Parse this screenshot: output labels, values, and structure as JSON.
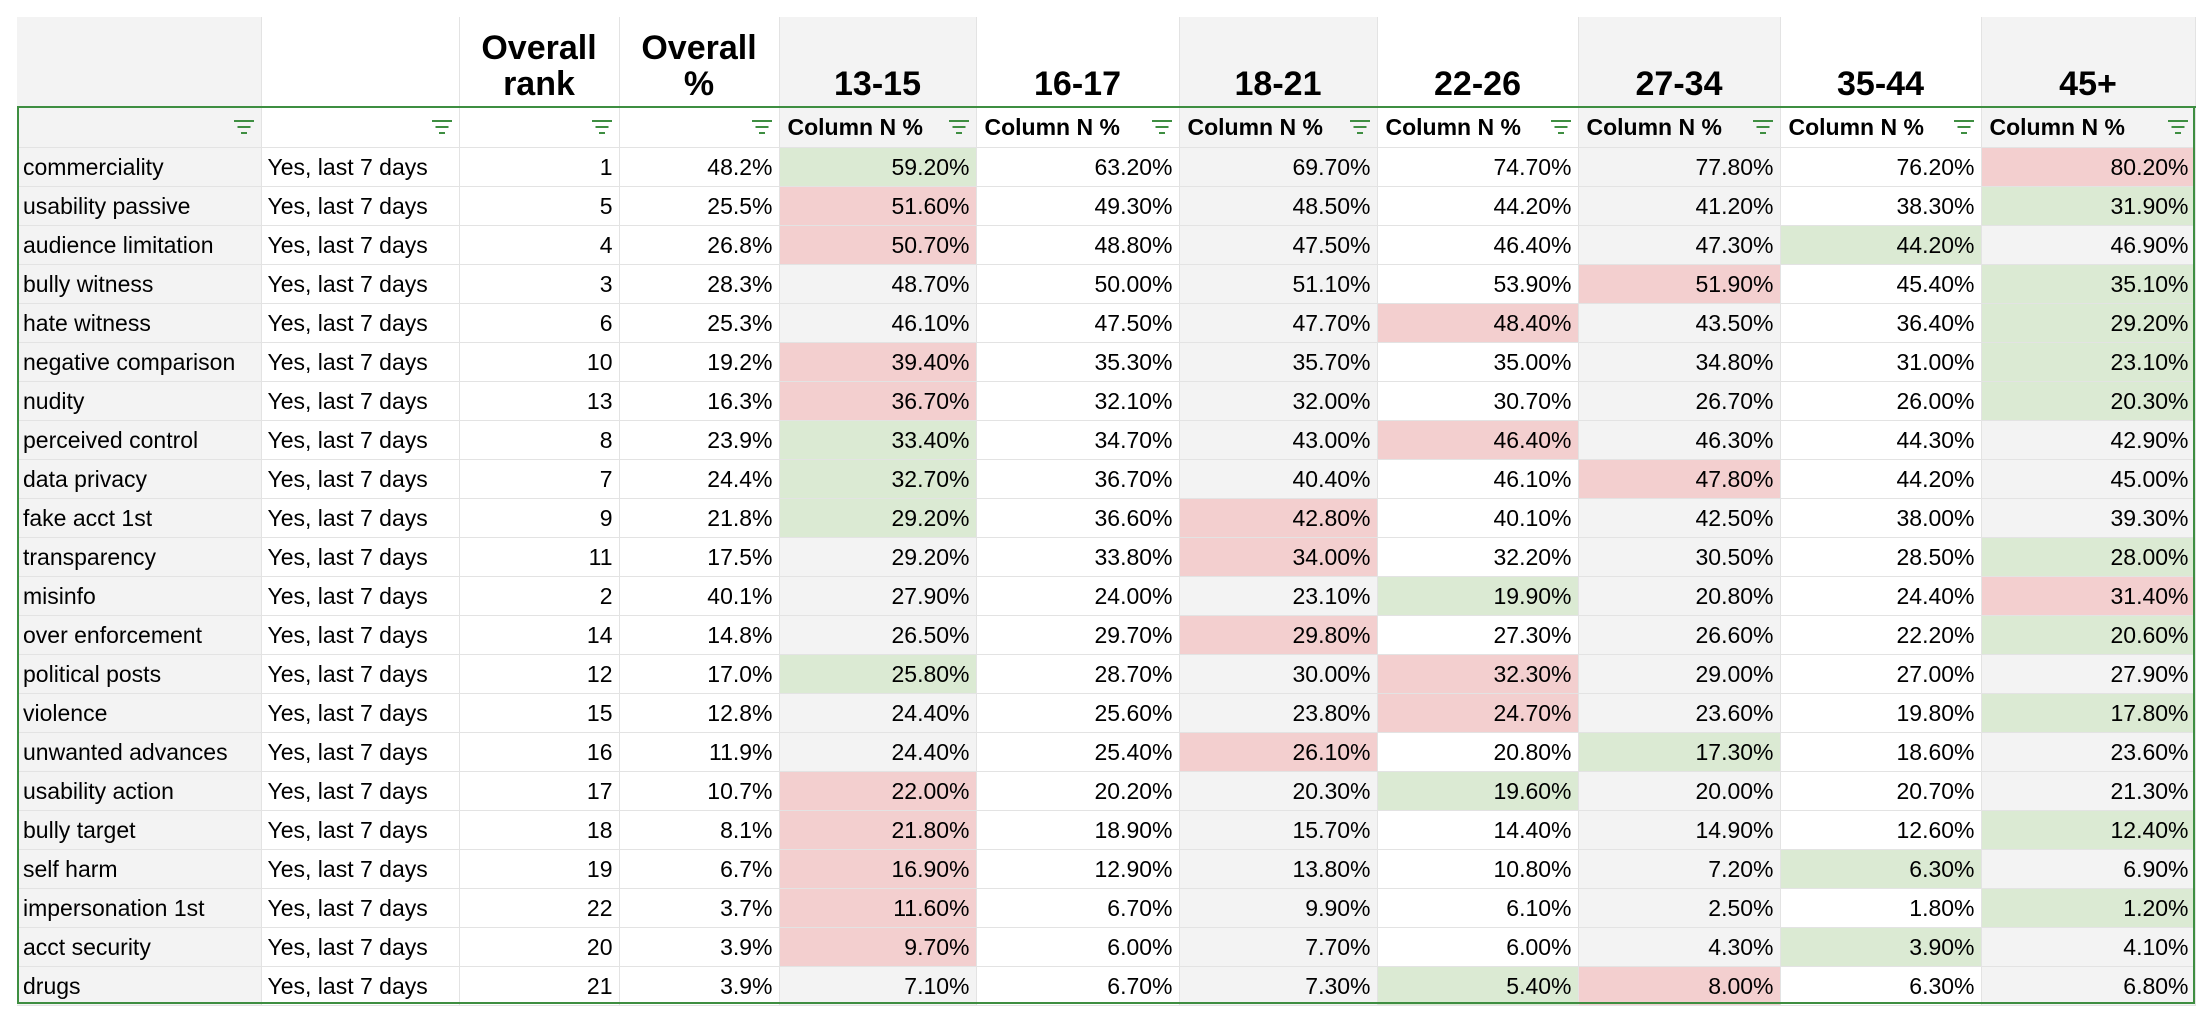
{
  "columns": {
    "headers": [
      "",
      "",
      "Overall\nrank",
      "Overall\n%",
      "13-15",
      "16-17",
      "18-21",
      "22-26",
      "27-34",
      "35-44",
      "45+"
    ],
    "subheader": [
      "",
      "",
      "",
      "",
      "Column N %",
      "Column N %",
      "Column N %",
      "Column N %",
      "Column N %",
      "Column N %",
      "Column N %"
    ],
    "shaded": [
      true,
      false,
      false,
      false,
      true,
      false,
      true,
      false,
      true,
      false,
      true
    ]
  },
  "icons": {
    "filter": "filter-icon"
  },
  "colors": {
    "green": "#dbead3",
    "red": "#f3cfcf",
    "shade": "#f3f3f3",
    "accent": "#3e8e41"
  },
  "rows": [
    {
      "cells": [
        "commerciality",
        "Yes, last 7 days",
        "1",
        "48.2%",
        "59.20%",
        "63.20%",
        "69.70%",
        "74.70%",
        "77.80%",
        "76.20%",
        "80.20%"
      ],
      "hl": {
        "4": "g",
        "10": "r"
      }
    },
    {
      "cells": [
        "usability passive",
        "Yes, last 7 days",
        "5",
        "25.5%",
        "51.60%",
        "49.30%",
        "48.50%",
        "44.20%",
        "41.20%",
        "38.30%",
        "31.90%"
      ],
      "hl": {
        "4": "r",
        "10": "g"
      }
    },
    {
      "cells": [
        "audience limitation",
        "Yes, last 7 days",
        "4",
        "26.8%",
        "50.70%",
        "48.80%",
        "47.50%",
        "46.40%",
        "47.30%",
        "44.20%",
        "46.90%"
      ],
      "hl": {
        "4": "r",
        "9": "g"
      }
    },
    {
      "cells": [
        "bully witness",
        "Yes, last 7 days",
        "3",
        "28.3%",
        "48.70%",
        "50.00%",
        "51.10%",
        "53.90%",
        "51.90%",
        "45.40%",
        "35.10%"
      ],
      "hl": {
        "8": "r",
        "10": "g"
      }
    },
    {
      "cells": [
        "hate witness",
        "Yes, last 7 days",
        "6",
        "25.3%",
        "46.10%",
        "47.50%",
        "47.70%",
        "48.40%",
        "43.50%",
        "36.40%",
        "29.20%"
      ],
      "hl": {
        "7": "r",
        "10": "g"
      }
    },
    {
      "cells": [
        "negative comparison",
        "Yes, last 7 days",
        "10",
        "19.2%",
        "39.40%",
        "35.30%",
        "35.70%",
        "35.00%",
        "34.80%",
        "31.00%",
        "23.10%"
      ],
      "hl": {
        "4": "r",
        "10": "g"
      }
    },
    {
      "cells": [
        "nudity",
        "Yes, last 7 days",
        "13",
        "16.3%",
        "36.70%",
        "32.10%",
        "32.00%",
        "30.70%",
        "26.70%",
        "26.00%",
        "20.30%"
      ],
      "hl": {
        "4": "r",
        "10": "g"
      }
    },
    {
      "cells": [
        "perceived control",
        "Yes, last 7 days",
        "8",
        "23.9%",
        "33.40%",
        "34.70%",
        "43.00%",
        "46.40%",
        "46.30%",
        "44.30%",
        "42.90%"
      ],
      "hl": {
        "4": "g",
        "7": "r"
      }
    },
    {
      "cells": [
        "data privacy",
        "Yes, last 7 days",
        "7",
        "24.4%",
        "32.70%",
        "36.70%",
        "40.40%",
        "46.10%",
        "47.80%",
        "44.20%",
        "45.00%"
      ],
      "hl": {
        "4": "g",
        "8": "r"
      }
    },
    {
      "cells": [
        "fake acct 1st",
        "Yes, last 7 days",
        "9",
        "21.8%",
        "29.20%",
        "36.60%",
        "42.80%",
        "40.10%",
        "42.50%",
        "38.00%",
        "39.30%"
      ],
      "hl": {
        "4": "g",
        "6": "r"
      }
    },
    {
      "cells": [
        "transparency",
        "Yes, last 7 days",
        "11",
        "17.5%",
        "29.20%",
        "33.80%",
        "34.00%",
        "32.20%",
        "30.50%",
        "28.50%",
        "28.00%"
      ],
      "hl": {
        "6": "r",
        "10": "g"
      }
    },
    {
      "cells": [
        "misinfo",
        "Yes, last 7 days",
        "2",
        "40.1%",
        "27.90%",
        "24.00%",
        "23.10%",
        "19.90%",
        "20.80%",
        "24.40%",
        "31.40%"
      ],
      "hl": {
        "7": "g",
        "10": "r"
      }
    },
    {
      "cells": [
        "over enforcement",
        "Yes, last 7 days",
        "14",
        "14.8%",
        "26.50%",
        "29.70%",
        "29.80%",
        "27.30%",
        "26.60%",
        "22.20%",
        "20.60%"
      ],
      "hl": {
        "6": "r",
        "10": "g"
      }
    },
    {
      "cells": [
        "political posts",
        "Yes, last 7 days",
        "12",
        "17.0%",
        "25.80%",
        "28.70%",
        "30.00%",
        "32.30%",
        "29.00%",
        "27.00%",
        "27.90%"
      ],
      "hl": {
        "4": "g",
        "7": "r"
      }
    },
    {
      "cells": [
        "violence",
        "Yes, last 7 days",
        "15",
        "12.8%",
        "24.40%",
        "25.60%",
        "23.80%",
        "24.70%",
        "23.60%",
        "19.80%",
        "17.80%"
      ],
      "hl": {
        "7": "r",
        "10": "g"
      }
    },
    {
      "cells": [
        "unwanted advances",
        "Yes, last 7 days",
        "16",
        "11.9%",
        "24.40%",
        "25.40%",
        "26.10%",
        "20.80%",
        "17.30%",
        "18.60%",
        "23.60%"
      ],
      "hl": {
        "6": "r",
        "8": "g"
      }
    },
    {
      "cells": [
        "usability action",
        "Yes, last 7 days",
        "17",
        "10.7%",
        "22.00%",
        "20.20%",
        "20.30%",
        "19.60%",
        "20.00%",
        "20.70%",
        "21.30%"
      ],
      "hl": {
        "4": "r",
        "7": "g"
      }
    },
    {
      "cells": [
        "bully target",
        "Yes, last 7 days",
        "18",
        "8.1%",
        "21.80%",
        "18.90%",
        "15.70%",
        "14.40%",
        "14.90%",
        "12.60%",
        "12.40%"
      ],
      "hl": {
        "4": "r",
        "10": "g"
      }
    },
    {
      "cells": [
        "self harm",
        "Yes, last 7 days",
        "19",
        "6.7%",
        "16.90%",
        "12.90%",
        "13.80%",
        "10.80%",
        "7.20%",
        "6.30%",
        "6.90%"
      ],
      "hl": {
        "4": "r",
        "9": "g"
      }
    },
    {
      "cells": [
        "impersonation 1st",
        "Yes, last 7 days",
        "22",
        "3.7%",
        "11.60%",
        "6.70%",
        "9.90%",
        "6.10%",
        "2.50%",
        "1.80%",
        "1.20%"
      ],
      "hl": {
        "4": "r",
        "10": "g"
      }
    },
    {
      "cells": [
        "acct security",
        "Yes, last 7 days",
        "20",
        "3.9%",
        "9.70%",
        "6.00%",
        "7.70%",
        "6.00%",
        "4.30%",
        "3.90%",
        "4.10%"
      ],
      "hl": {
        "4": "r",
        "9": "g"
      }
    },
    {
      "cells": [
        "drugs",
        "Yes, last 7 days",
        "21",
        "3.9%",
        "7.10%",
        "6.70%",
        "7.30%",
        "5.40%",
        "8.00%",
        "6.30%",
        "6.80%"
      ],
      "hl": {
        "7": "g",
        "8": "r"
      }
    }
  ]
}
